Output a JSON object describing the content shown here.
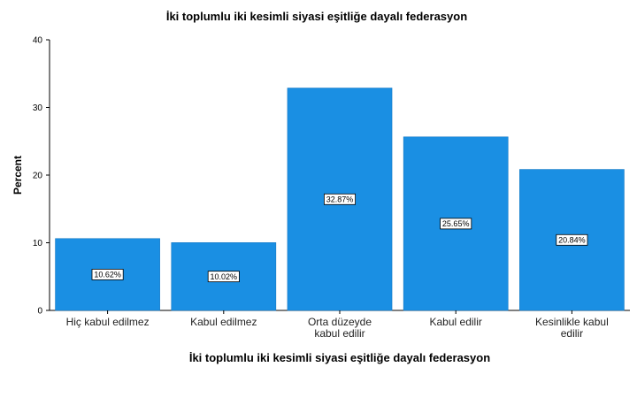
{
  "chart_data": {
    "type": "bar",
    "title": "İki toplumlu iki kesimli siyasi eşitliğe dayalı federasyon",
    "xlabel": "İki toplumlu iki kesimli siyasi eşitliğe dayalı federasyon",
    "ylabel": "Percent",
    "categories": [
      [
        "Hiç kabul edilmez"
      ],
      [
        "Kabul edilmez"
      ],
      [
        "Orta düzeyde",
        "kabul edilir"
      ],
      [
        "Kabul edilir"
      ],
      [
        "Kesinlikle kabul",
        "edilir"
      ]
    ],
    "values": [
      10.62,
      10.02,
      32.87,
      25.65,
      20.84
    ],
    "data_labels": [
      "10.62%",
      "10.02%",
      "32.87%",
      "25.65%",
      "20.84%"
    ],
    "yticks": [
      0,
      10,
      20,
      30,
      40
    ],
    "ylim": [
      0,
      40
    ],
    "grid": false,
    "bar_color": "#1a8fe3"
  }
}
